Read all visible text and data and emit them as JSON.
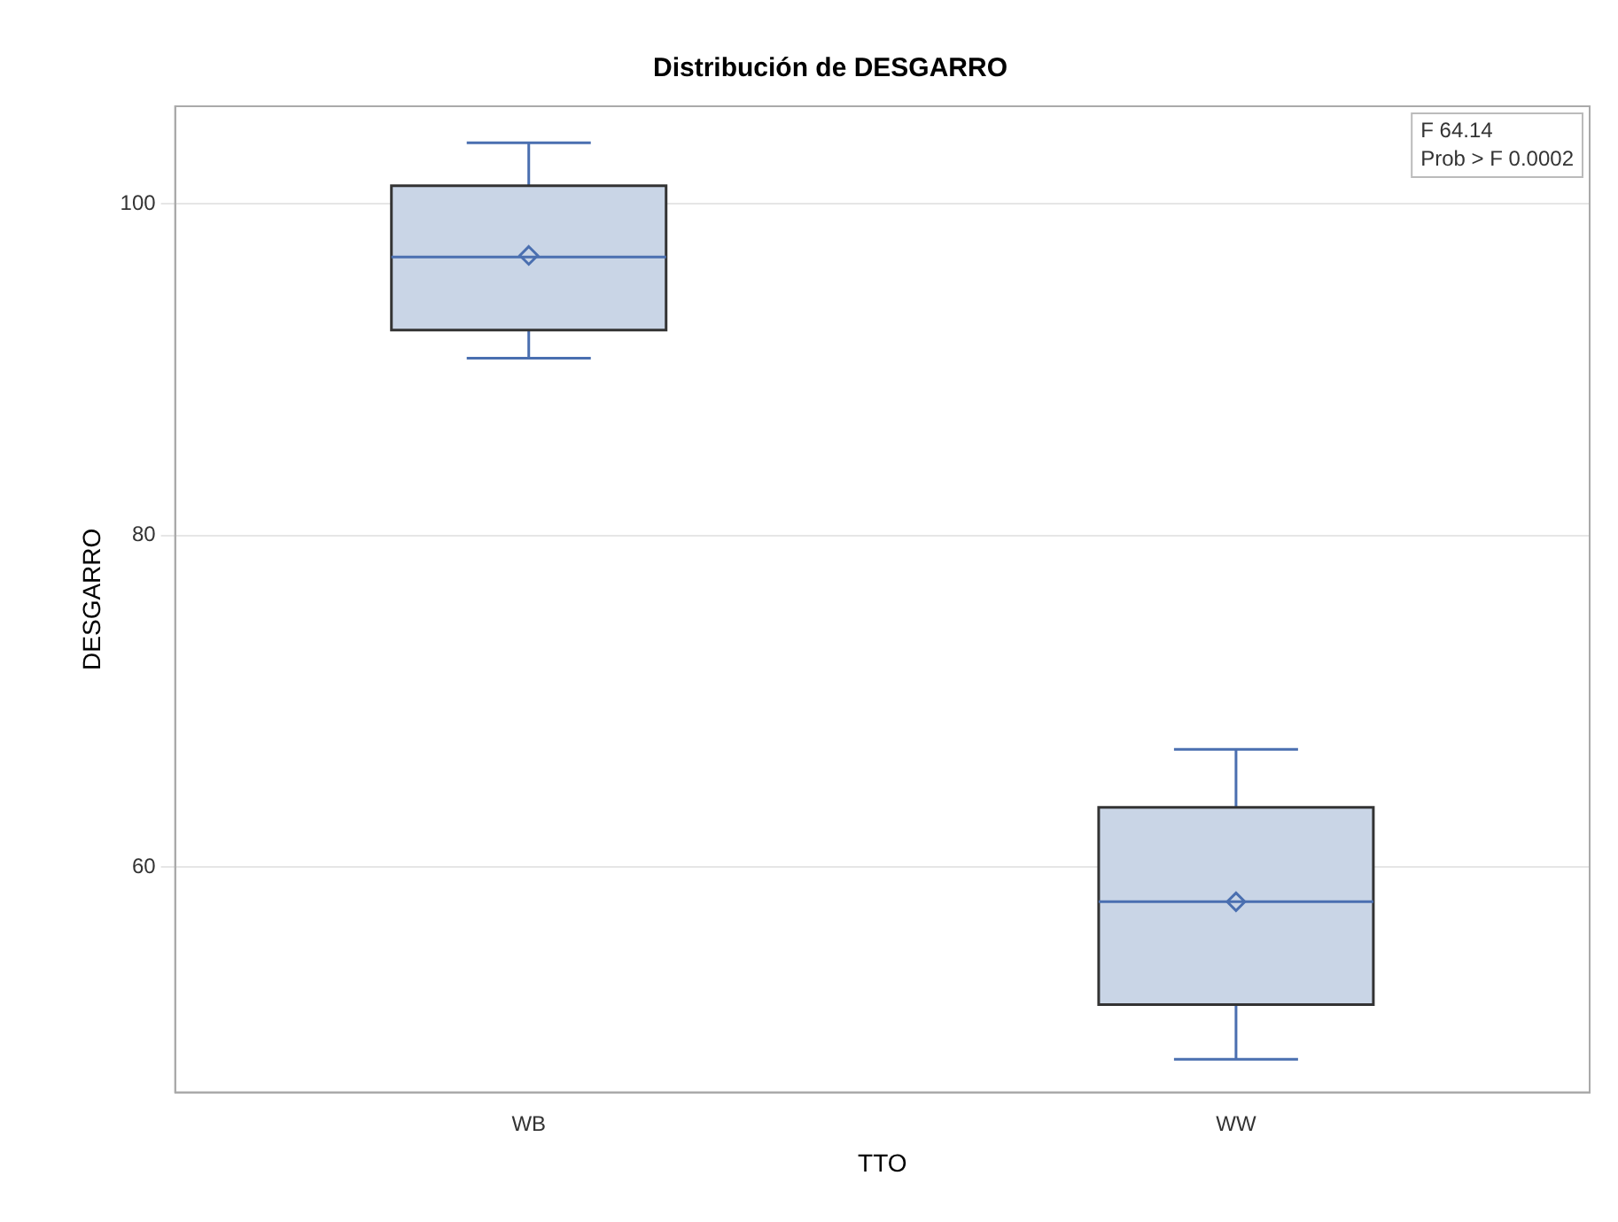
{
  "chart_data": {
    "type": "box",
    "title": "Distribución de DESGARRO",
    "xlabel": "TTO",
    "ylabel": "DESGARRO",
    "categories": [
      "WB",
      "WW"
    ],
    "boxes": [
      {
        "low": 90.7,
        "q1": 92.4,
        "median": 96.8,
        "q3": 101.1,
        "high": 103.7,
        "mean": 96.9
      },
      {
        "low": 48.4,
        "q1": 51.7,
        "median": 57.9,
        "q3": 63.6,
        "high": 67.1,
        "mean": 57.9
      }
    ],
    "color": "#c9d5e6",
    "ylim": [
      46.4,
      105.9
    ],
    "yticks": [
      60,
      80,
      100
    ],
    "grid": "y",
    "legend": false,
    "marker": "diamond",
    "annotations": [
      "F 64.14",
      "Prob > F 0.0002"
    ]
  }
}
